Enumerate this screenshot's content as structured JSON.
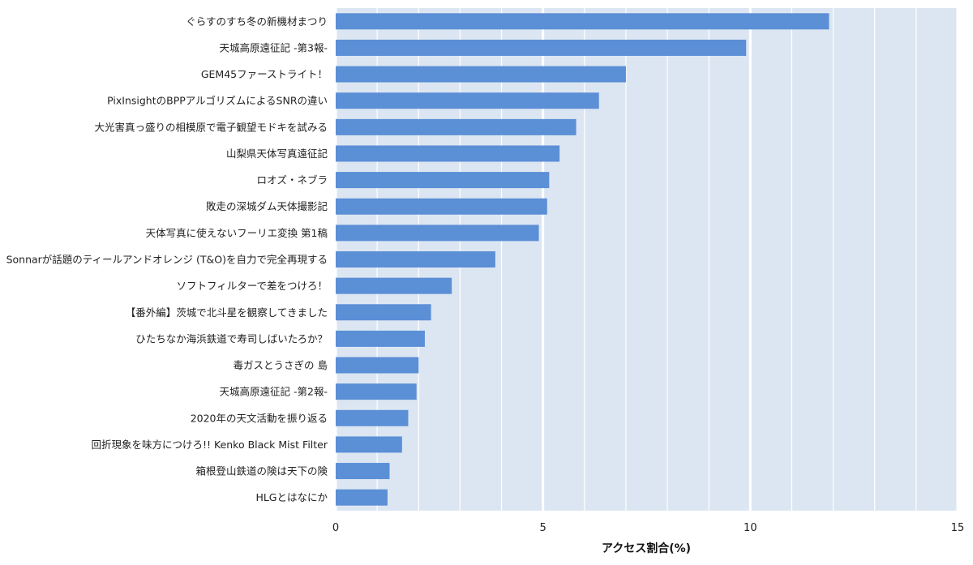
{
  "colors": {
    "bar": "#5b8fd6",
    "plot_background": "#dce6f2",
    "gridline": "#ffffff",
    "text": "#222222"
  },
  "chart_data": {
    "type": "bar",
    "orientation": "horizontal",
    "categories": [
      "ぐらすのすち冬の新機材まつり",
      "天城高原遠征記 -第3報-",
      "GEM45ファーストライト！",
      "PixInsightのBPPアルゴリズムによるSNRの違い",
      "大光害真っ盛りの相模原で電子観望モドキを試みる",
      "山梨県天体写真遠征記",
      "ロオズ・ネブラ",
      "敗走の深城ダム天体撮影記",
      "天体写真に使えないフーリエ変換 第1稿",
      "Sonnarが話題のティールアンドオレンジ (T&O)を自力で完全再現する",
      "ソフトフィルターで差をつけろ！",
      "【番外編】茨城で北斗星を観察してきました",
      "ひたちなか海浜鉄道で寿司しばいたろか？",
      "毒ガスとうさぎの 島",
      "天城高原遠征記 -第2報-",
      "2020年の天文活動を振り返る",
      "回折現象を味方につけろ!! Kenko Black Mist Filter",
      "箱根登山鉄道の険は天下の険",
      "HLGとはなにか"
    ],
    "values": [
      11.9,
      9.9,
      7.0,
      6.35,
      5.8,
      5.4,
      5.15,
      5.1,
      4.9,
      3.85,
      2.8,
      2.3,
      2.15,
      2.0,
      1.95,
      1.75,
      1.6,
      1.3,
      1.25
    ],
    "xlim": [
      0,
      15
    ],
    "x_ticks": [
      "0",
      "5",
      "10",
      "15"
    ],
    "x_tick_values": [
      0,
      5,
      10,
      15
    ],
    "xlabel": "アクセス割合(%)",
    "ylabel": "",
    "title": "",
    "grid": true
  }
}
